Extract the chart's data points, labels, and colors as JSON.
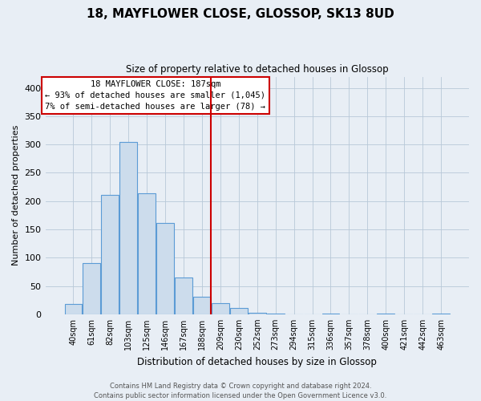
{
  "title": "18, MAYFLOWER CLOSE, GLOSSOP, SK13 8UD",
  "subtitle": "Size of property relative to detached houses in Glossop",
  "xlabel": "Distribution of detached houses by size in Glossop",
  "ylabel": "Number of detached properties",
  "bin_labels": [
    "40sqm",
    "61sqm",
    "82sqm",
    "103sqm",
    "125sqm",
    "146sqm",
    "167sqm",
    "188sqm",
    "209sqm",
    "230sqm",
    "252sqm",
    "273sqm",
    "294sqm",
    "315sqm",
    "336sqm",
    "357sqm",
    "378sqm",
    "400sqm",
    "421sqm",
    "442sqm",
    "463sqm"
  ],
  "bar_values": [
    18,
    90,
    211,
    305,
    214,
    161,
    65,
    31,
    20,
    11,
    3,
    1,
    0,
    0,
    1,
    0,
    0,
    1,
    0,
    0,
    1
  ],
  "bar_color": "#ccdcec",
  "bar_edge_color": "#5b9bd5",
  "vline_x": 7.5,
  "vline_color": "#cc0000",
  "annotation_title": "18 MAYFLOWER CLOSE: 187sqm",
  "annotation_line1": "← 93% of detached houses are smaller (1,045)",
  "annotation_line2": "7% of semi-detached houses are larger (78) →",
  "ylim": [
    0,
    420
  ],
  "yticks": [
    0,
    50,
    100,
    150,
    200,
    250,
    300,
    350,
    400
  ],
  "footer1": "Contains HM Land Registry data © Crown copyright and database right 2024.",
  "footer2": "Contains public sector information licensed under the Open Government Licence v3.0.",
  "background_color": "#e8eef5",
  "plot_background": "#e8eef5"
}
